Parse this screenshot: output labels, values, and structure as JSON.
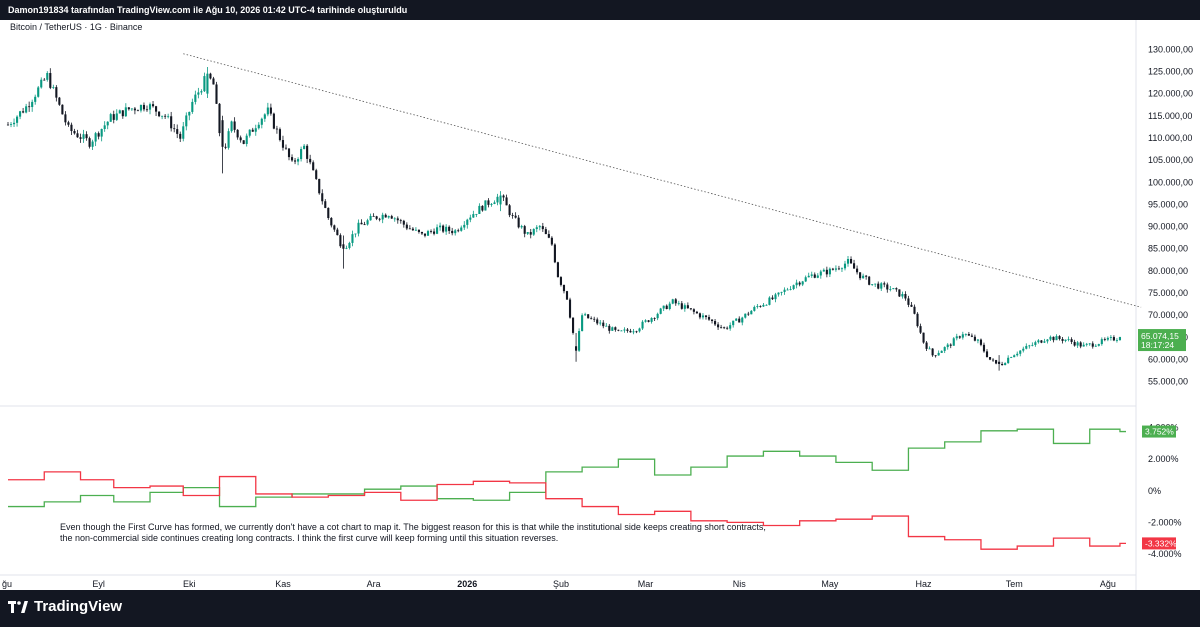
{
  "header": {
    "text": "Damon191834 tarafından TradingView.com ile Ağu 10, 2026 01:42 UTC-4 tarihinde oluşturuldu"
  },
  "footer": {
    "brand": "TradingView"
  },
  "chart_data": [
    {
      "type": "candlestick",
      "title": "Bitcoin / TetherUS · 1G · Binance",
      "ylim": [
        52000,
        133000
      ],
      "y_ticks": [
        "130.000,00",
        "125.000,00",
        "120.000,00",
        "115.000,00",
        "110.000,00",
        "105.000,00",
        "100.000,00",
        "95.000,00",
        "90.000,00",
        "85.000,00",
        "80.000,00",
        "75.000,00",
        "70.000,00",
        "65.000,00",
        "60.000,00",
        "55.000,00"
      ],
      "y_tick_values": [
        130000,
        125000,
        120000,
        115000,
        110000,
        105000,
        100000,
        95000,
        90000,
        85000,
        80000,
        75000,
        70000,
        65000,
        60000,
        55000
      ],
      "x_ticks": [
        "ğu",
        "Eyl",
        "Eki",
        "Kas",
        "Ara",
        "2026",
        "Şub",
        "Mar",
        "Nis",
        "May",
        "Haz",
        "Tem",
        "Ağu"
      ],
      "x_tick_days": [
        0,
        30,
        60,
        91,
        121,
        152,
        183,
        211,
        242,
        272,
        303,
        333,
        364
      ],
      "last_price_label": "65.074,15",
      "countdown_label": "18:17:24",
      "up_color": "#089981",
      "down_color": "#131722",
      "trendline": {
        "start": {
          "day": 58,
          "price": 129000
        },
        "end": {
          "day": 375,
          "price": 71800
        }
      },
      "price_path": [
        [
          0,
          113000
        ],
        [
          6,
          117000
        ],
        [
          13,
          124000
        ],
        [
          20,
          112000
        ],
        [
          27,
          109000
        ],
        [
          34,
          114500
        ],
        [
          40,
          116500
        ],
        [
          46,
          117500
        ],
        [
          52,
          115000
        ],
        [
          57,
          110000
        ],
        [
          61,
          118000
        ],
        [
          66,
          124000
        ],
        [
          68,
          122000
        ],
        [
          71,
          106000
        ],
        [
          74,
          113000
        ],
        [
          78,
          109000
        ],
        [
          83,
          114000
        ],
        [
          86,
          116000
        ],
        [
          90,
          110000
        ],
        [
          94,
          104000
        ],
        [
          98,
          108000
        ],
        [
          102,
          100000
        ],
        [
          106,
          92000
        ],
        [
          111,
          85000
        ],
        [
          116,
          90000
        ],
        [
          121,
          92000
        ],
        [
          126,
          93000
        ],
        [
          132,
          90000
        ],
        [
          137,
          88000
        ],
        [
          142,
          89500
        ],
        [
          148,
          89000
        ],
        [
          152,
          92000
        ],
        [
          158,
          95000
        ],
        [
          163,
          97000
        ],
        [
          167,
          92000
        ],
        [
          172,
          88000
        ],
        [
          176,
          90000
        ],
        [
          180,
          86000
        ],
        [
          182,
          79000
        ],
        [
          185,
          74000
        ],
        [
          187,
          66000
        ],
        [
          188,
          62000
        ],
        [
          190,
          70000
        ],
        [
          196,
          68000
        ],
        [
          202,
          66000
        ],
        [
          208,
          67000
        ],
        [
          214,
          70000
        ],
        [
          220,
          73000
        ],
        [
          226,
          71000
        ],
        [
          232,
          69000
        ],
        [
          237,
          67000
        ],
        [
          242,
          69000
        ],
        [
          248,
          72000
        ],
        [
          254,
          74000
        ],
        [
          260,
          77000
        ],
        [
          266,
          79000
        ],
        [
          272,
          80000
        ],
        [
          278,
          82000
        ],
        [
          282,
          79000
        ],
        [
          286,
          77000
        ],
        [
          292,
          76000
        ],
        [
          297,
          74000
        ],
        [
          300,
          70000
        ],
        [
          303,
          64000
        ],
        [
          306,
          61000
        ],
        [
          311,
          63000
        ],
        [
          316,
          66000
        ],
        [
          321,
          64000
        ],
        [
          325,
          60000
        ],
        [
          328,
          58500
        ],
        [
          332,
          61000
        ],
        [
          338,
          63000
        ],
        [
          344,
          65000
        ],
        [
          350,
          64500
        ],
        [
          356,
          63000
        ],
        [
          362,
          64000
        ],
        [
          368,
          65074
        ]
      ],
      "special_candles": [
        {
          "day": 71,
          "open": 114000,
          "high": 115000,
          "low": 102000,
          "close": 108000
        },
        {
          "day": 111,
          "open": 86000,
          "high": 88000,
          "low": 80500,
          "close": 85000
        },
        {
          "day": 188,
          "open": 63000,
          "high": 66000,
          "low": 59500,
          "close": 62000
        },
        {
          "day": 66,
          "open": 120000,
          "high": 126000,
          "low": 119000,
          "close": 124500
        },
        {
          "day": 163,
          "open": 95000,
          "high": 98000,
          "low": 93500,
          "close": 97000
        },
        {
          "day": 328,
          "open": 59500,
          "high": 61000,
          "low": 57500,
          "close": 59000
        }
      ]
    },
    {
      "type": "step-line",
      "ylim": [
        -4700,
        4800
      ],
      "y_ticks": [
        "4.000%",
        "2.000%",
        "0%",
        "-2.000%",
        "-4.000%"
      ],
      "y_tick_values": [
        4000,
        2000,
        0,
        -2000,
        -4000
      ],
      "series": [
        {
          "color": "#4caf50",
          "last_label": "3.752%",
          "steps": [
            [
              0,
              -1000
            ],
            [
              12,
              -700
            ],
            [
              24,
              -300
            ],
            [
              35,
              -700
            ],
            [
              47,
              -100
            ],
            [
              58,
              200
            ],
            [
              70,
              -1000
            ],
            [
              82,
              -400
            ],
            [
              94,
              -200
            ],
            [
              106,
              -200
            ],
            [
              118,
              100
            ],
            [
              130,
              300
            ],
            [
              142,
              -500
            ],
            [
              154,
              -600
            ],
            [
              166,
              -100
            ],
            [
              178,
              1200
            ],
            [
              190,
              1500
            ],
            [
              202,
              2000
            ],
            [
              214,
              1000
            ],
            [
              226,
              1500
            ],
            [
              238,
              2200
            ],
            [
              250,
              2500
            ],
            [
              262,
              2200
            ],
            [
              274,
              1800
            ],
            [
              286,
              1300
            ],
            [
              298,
              2700
            ],
            [
              310,
              3100
            ],
            [
              322,
              3800
            ],
            [
              334,
              3900
            ],
            [
              346,
              3000
            ],
            [
              358,
              3900
            ],
            [
              368,
              3752
            ]
          ]
        },
        {
          "color": "#f23645",
          "last_label": "-3.332%",
          "steps": [
            [
              0,
              700
            ],
            [
              12,
              1200
            ],
            [
              24,
              700
            ],
            [
              35,
              200
            ],
            [
              47,
              300
            ],
            [
              58,
              -300
            ],
            [
              70,
              900
            ],
            [
              82,
              -200
            ],
            [
              94,
              -400
            ],
            [
              106,
              -300
            ],
            [
              118,
              -100
            ],
            [
              130,
              -600
            ],
            [
              142,
              400
            ],
            [
              154,
              600
            ],
            [
              166,
              500
            ],
            [
              178,
              -500
            ],
            [
              190,
              -1000
            ],
            [
              202,
              -1500
            ],
            [
              214,
              -1300
            ],
            [
              226,
              -1900
            ],
            [
              238,
              -2000
            ],
            [
              250,
              -2200
            ],
            [
              262,
              -1900
            ],
            [
              274,
              -1800
            ],
            [
              286,
              -1600
            ],
            [
              298,
              -2900
            ],
            [
              310,
              -3100
            ],
            [
              322,
              -3700
            ],
            [
              334,
              -3500
            ],
            [
              346,
              -3000
            ],
            [
              358,
              -3500
            ],
            [
              368,
              -3332
            ]
          ]
        }
      ]
    }
  ],
  "annotation": {
    "line1": "Even though the First Curve has formed, we currently don't have a cot chart to map it. The biggest reason for this is that while the institutional side keeps creating short contracts,",
    "line2": "the non-commercial side continues creating long contracts. I think the first curve will keep forming until this situation reverses."
  }
}
